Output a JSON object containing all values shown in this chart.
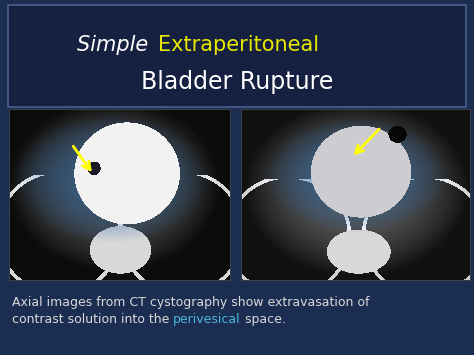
{
  "bg_color": "#1c2d52",
  "title_box_color": "#162040",
  "title_border_color": "#4a6090",
  "title_italic": "Simple ",
  "title_yellow": "Extraperitoneal",
  "title_line2": "Bladder Rupture",
  "title_white": "#ffffff",
  "title_yellow_color": "#e8e800",
  "caption1": "Axial images from CT cystography show extravasation of",
  "caption2": "contrast solution into the ",
  "caption_word": "perivesical",
  "caption3": " space.",
  "caption_color": "#d8d8d8",
  "caption_cyan": "#4ab8d8",
  "title_fs1": 15,
  "title_fs2": 17,
  "caption_fs": 9.0,
  "fig_w": 4.74,
  "fig_h": 3.55,
  "dpi": 100
}
